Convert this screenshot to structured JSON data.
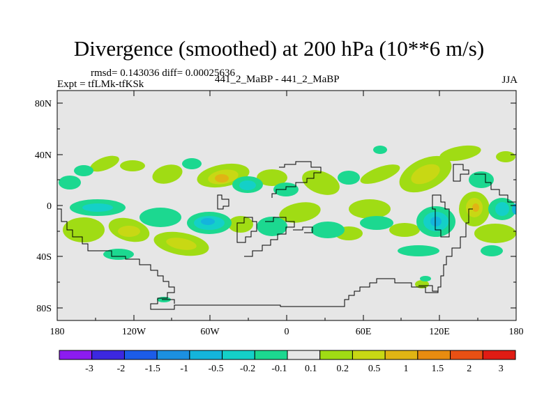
{
  "title": "Divergence (smoothed) at 200 hPa (10**6 m/s)",
  "stats": "rmsd= 0.143036 diff= 0.00025636",
  "experiment": "Expt = tfLMk-tfKSk",
  "subtitle": "441_2_MaBP - 441_2_MaBP",
  "season": "JJA",
  "lat_ticks": [
    "80N",
    "40N",
    "0",
    "40S",
    "80S"
  ],
  "lon_ticks": [
    "180",
    "120W",
    "60W",
    "0",
    "60E",
    "120E",
    "180"
  ],
  "colorbar": {
    "labels": [
      "-3",
      "-2",
      "-1.5",
      "-1",
      "-0.5",
      "-0.2",
      "-0.1",
      "0.1",
      "0.2",
      "0.5",
      "1",
      "1.5",
      "2",
      "3"
    ],
    "colors": [
      "#8c1cf0",
      "#3c28e0",
      "#1c5ce8",
      "#1c90e0",
      "#14b4dc",
      "#14d0c8",
      "#1cd890",
      "#e6e6e6",
      "#a0dc14",
      "#c8d814",
      "#e0b414",
      "#e88c10",
      "#e85014",
      "#e01c14"
    ]
  }
}
